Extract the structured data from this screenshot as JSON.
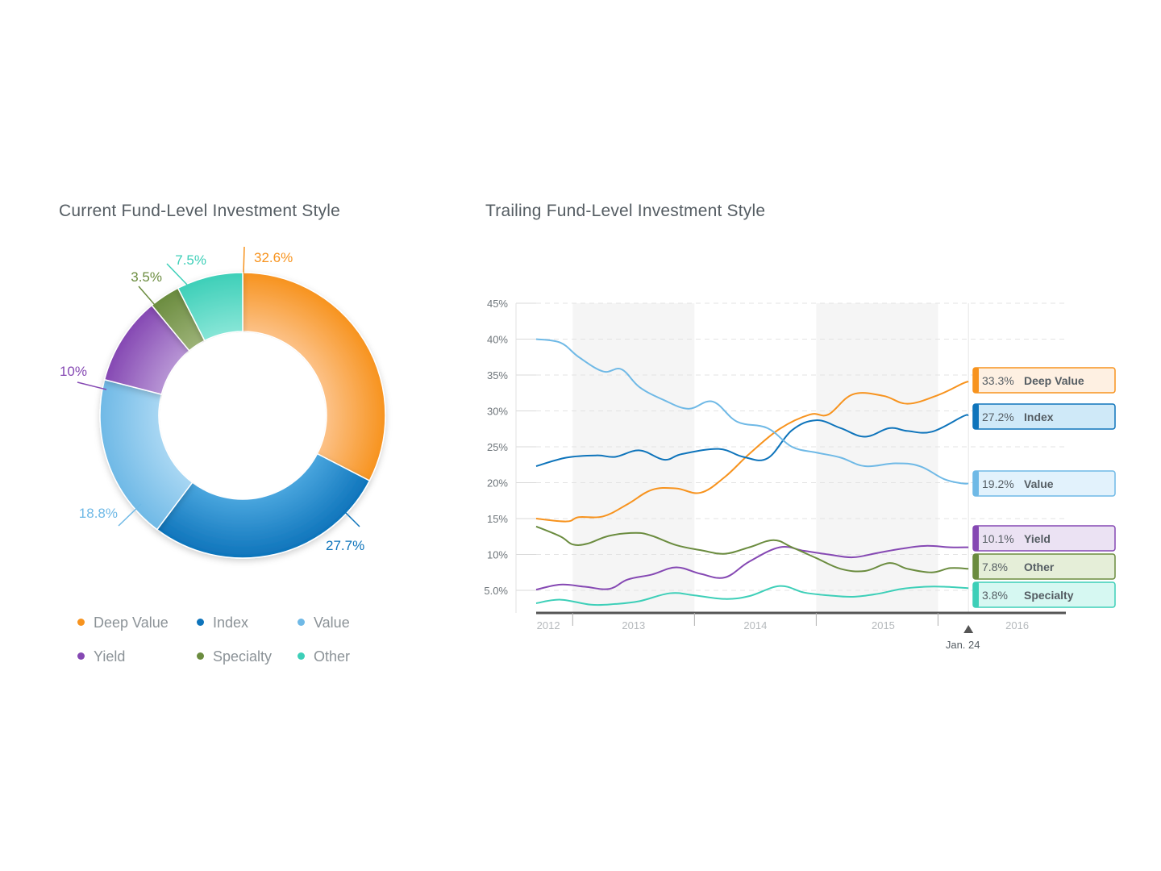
{
  "chart_data": [
    {
      "type": "pie",
      "title": "Current Fund-Level Investment Style",
      "donut": true,
      "slices": [
        {
          "label": "Deep Value",
          "value": 32.6,
          "display": "32.6%",
          "color": "#f7931e",
          "light": "#fcc289"
        },
        {
          "label": "Index",
          "value": 27.7,
          "display": "27.7%",
          "color": "#0e74bb",
          "light": "#4aa6de"
        },
        {
          "label": "Value",
          "value": 18.8,
          "display": "18.8%",
          "color": "#6fb9e6",
          "light": "#a9d7f3"
        },
        {
          "label": "Yield",
          "value": 10.0,
          "display": "10%",
          "color": "#8548b3",
          "light": "#b896d5"
        },
        {
          "label": "Specialty",
          "value": 3.5,
          "display": "3.5%",
          "color": "#6b8c3f",
          "light": "#9db378"
        },
        {
          "label": "Other",
          "value": 7.5,
          "display": "7.5%",
          "color": "#3dcfb8",
          "light": "#88e6d7"
        }
      ],
      "legend": [
        {
          "label": "Deep Value",
          "color": "#f7931e"
        },
        {
          "label": "Index",
          "color": "#0e74bb"
        },
        {
          "label": "Value",
          "color": "#6fb9e6"
        },
        {
          "label": "Yield",
          "color": "#8548b3"
        },
        {
          "label": "Specialty",
          "color": "#6b8c3f"
        },
        {
          "label": "Other",
          "color": "#3dcfb8"
        }
      ],
      "legend_placement": "bottom"
    },
    {
      "type": "line",
      "title": "Trailing Fund-Level Investment Style",
      "ylim": [
        3,
        45
      ],
      "yticks": [
        {
          "v": 45,
          "label": "45%"
        },
        {
          "v": 40,
          "label": "40%"
        },
        {
          "v": 35,
          "label": "35%"
        },
        {
          "v": 30,
          "label": "30%"
        },
        {
          "v": 25,
          "label": "25%"
        },
        {
          "v": 20,
          "label": "20%"
        },
        {
          "v": 15,
          "label": "15%"
        },
        {
          "v": 10,
          "label": "10%"
        },
        {
          "v": 5,
          "label": "5.0%"
        }
      ],
      "xlim": [
        2012.0,
        2016.35
      ],
      "year_labels": [
        {
          "x": 2012.1,
          "label": "2012"
        },
        {
          "x": 2012.8,
          "label": "2013"
        },
        {
          "x": 2013.8,
          "label": "2014"
        },
        {
          "x": 2014.85,
          "label": "2015"
        },
        {
          "x": 2015.95,
          "label": "2016"
        }
      ],
      "year_dividers": [
        2012.3,
        2013.3,
        2014.3,
        2015.3
      ],
      "shaded_bands": [
        [
          2012.3,
          2013.3
        ],
        [
          2014.3,
          2015.3
        ]
      ],
      "marker": {
        "x": 2015.55,
        "label": "Jan. 24"
      },
      "grid": true,
      "series": [
        {
          "name": "Deep Value",
          "color": "#f7931e",
          "current": "33.3%",
          "x": [
            2012.0,
            2012.25,
            2012.35,
            2012.55,
            2012.75,
            2012.95,
            2013.15,
            2013.35,
            2013.55,
            2013.75,
            2014.0,
            2014.25,
            2014.4,
            2014.6,
            2014.85,
            2015.05,
            2015.3,
            2015.5,
            2015.55
          ],
          "y": [
            15,
            14.6,
            15.2,
            15.3,
            17,
            19,
            19.2,
            18.6,
            20.8,
            24,
            27.5,
            29.5,
            29.5,
            32.3,
            32.1,
            31,
            32.2,
            33.8,
            34.1
          ]
        },
        {
          "name": "Index",
          "color": "#0e74bb",
          "current": "27.2%",
          "x": [
            2012.0,
            2012.25,
            2012.5,
            2012.65,
            2012.85,
            2013.05,
            2013.2,
            2013.5,
            2013.7,
            2013.9,
            2014.1,
            2014.3,
            2014.5,
            2014.7,
            2014.9,
            2015.05,
            2015.25,
            2015.5,
            2015.55
          ],
          "y": [
            22.3,
            23.5,
            23.8,
            23.6,
            24.5,
            23.2,
            24,
            24.7,
            23.6,
            23.4,
            27.3,
            28.7,
            27.6,
            26.4,
            27.6,
            27.2,
            27.1,
            29.2,
            29.4
          ]
        },
        {
          "name": "Value",
          "color": "#6fb9e6",
          "current": "19.2%",
          "x": [
            2012.0,
            2012.2,
            2012.35,
            2012.55,
            2012.7,
            2012.85,
            2013.05,
            2013.25,
            2013.45,
            2013.65,
            2013.9,
            2014.1,
            2014.3,
            2014.5,
            2014.7,
            2014.95,
            2015.15,
            2015.35,
            2015.5,
            2015.55
          ],
          "y": [
            40,
            39.5,
            37.5,
            35.5,
            35.8,
            33.3,
            31.5,
            30.3,
            31.3,
            28.5,
            27.6,
            25,
            24.2,
            23.5,
            22.3,
            22.7,
            22.3,
            20.5,
            19.9,
            19.9
          ]
        },
        {
          "name": "Yield",
          "color": "#8548b3",
          "current": "10.1%",
          "x": [
            2012.0,
            2012.2,
            2012.4,
            2012.6,
            2012.75,
            2012.95,
            2013.15,
            2013.35,
            2013.55,
            2013.75,
            2014.0,
            2014.2,
            2014.4,
            2014.6,
            2014.8,
            2015.0,
            2015.2,
            2015.4,
            2015.55
          ],
          "y": [
            5.1,
            5.8,
            5.5,
            5.2,
            6.5,
            7.2,
            8.2,
            7.3,
            6.8,
            9,
            11,
            10.5,
            10,
            9.6,
            10.2,
            10.8,
            11.2,
            11,
            11
          ]
        },
        {
          "name": "Other",
          "color": "#6b8c3f",
          "current": "7.8%",
          "x": [
            2012.0,
            2012.2,
            2012.3,
            2012.42,
            2012.6,
            2012.82,
            2012.95,
            2013.15,
            2013.35,
            2013.55,
            2013.75,
            2013.95,
            2014.1,
            2014.3,
            2014.5,
            2014.7,
            2014.9,
            2015.05,
            2015.25,
            2015.4,
            2015.55
          ],
          "y": [
            13.9,
            12.5,
            11.4,
            11.5,
            12.6,
            13,
            12.6,
            11.3,
            10.6,
            10.1,
            11,
            12,
            11,
            9.5,
            8,
            7.7,
            8.8,
            8,
            7.5,
            8.1,
            8
          ]
        },
        {
          "name": "Specialty",
          "color": "#3dcfb8",
          "current": "3.8%",
          "x": [
            2012.0,
            2012.2,
            2012.45,
            2012.65,
            2012.85,
            2013.1,
            2013.3,
            2013.55,
            2013.75,
            2014.0,
            2014.2,
            2014.4,
            2014.6,
            2014.8,
            2015.0,
            2015.2,
            2015.35,
            2015.55
          ],
          "y": [
            3.2,
            3.7,
            3,
            3.1,
            3.5,
            4.6,
            4.3,
            3.8,
            4.2,
            5.6,
            4.7,
            4.3,
            4.1,
            4.5,
            5.2,
            5.5,
            5.5,
            5.3
          ]
        }
      ],
      "current_badges": [
        {
          "value": "33.3%",
          "name": "Deep Value",
          "color": "#f7931e",
          "bg": "#fef0e2"
        },
        {
          "value": "27.2%",
          "name": "Index",
          "color": "#0e74bb",
          "bg": "#cfe9f8"
        },
        {
          "value": "19.2%",
          "name": "Value",
          "color": "#6fb9e6",
          "bg": "#e2f2fc"
        },
        {
          "value": "10.1%",
          "name": "Yield",
          "color": "#8548b3",
          "bg": "#ebe2f3"
        },
        {
          "value": "7.8%",
          "name": "Other",
          "color": "#6b8c3f",
          "bg": "#e5eed8"
        },
        {
          "value": "3.8%",
          "name": "Specialty",
          "color": "#3dcfb8",
          "bg": "#d6f8f2"
        }
      ]
    }
  ]
}
